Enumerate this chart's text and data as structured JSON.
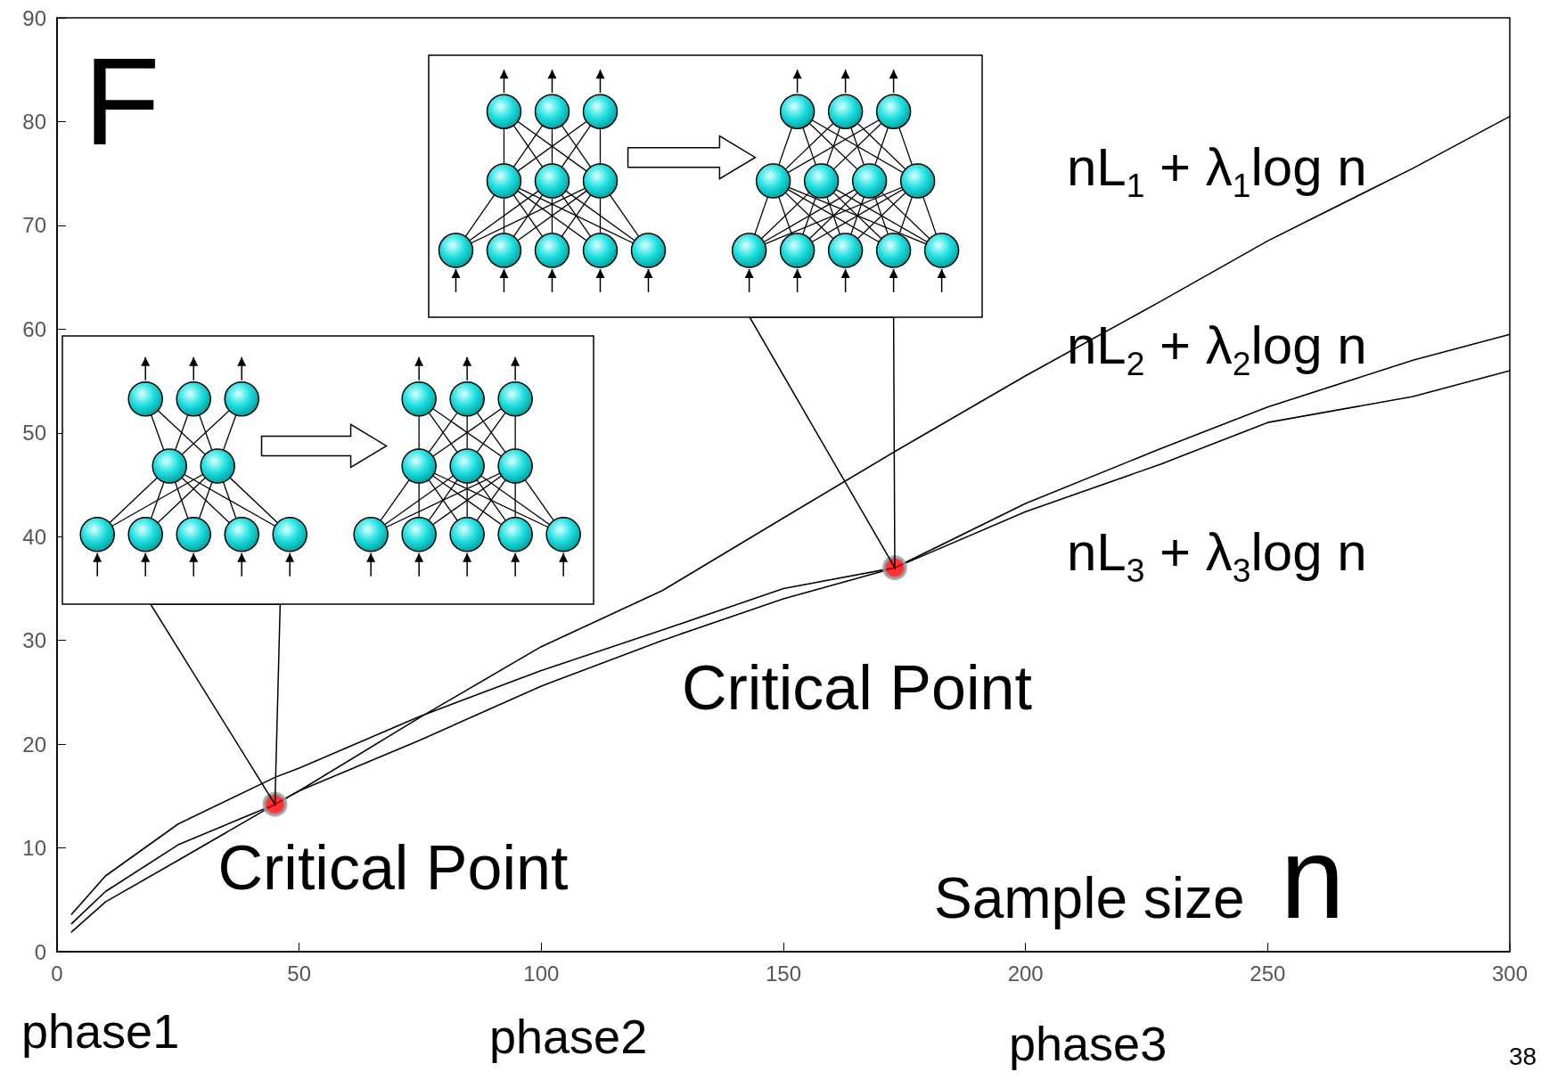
{
  "chart_data": {
    "type": "line",
    "title": "F",
    "xlabel": "Sample size n",
    "x": [
      3,
      10,
      25,
      45,
      50,
      75,
      100,
      125,
      150,
      173,
      200,
      228,
      250,
      280,
      300
    ],
    "series": [
      {
        "name": "nL$_{1}$ + λ$_{1}$log n",
        "color": "#000000",
        "values": [
          1.9,
          4.8,
          8.8,
          14.2,
          15.5,
          22.6,
          29.4,
          34.8,
          41.8,
          48.2,
          55.5,
          62.7,
          68.5,
          75.5,
          80.5
        ]
      },
      {
        "name": "nL$_{2}$ + λ$_{2}$log n",
        "color": "#000000",
        "values": [
          2.7,
          5.8,
          10.3,
          14.2,
          15.5,
          20.4,
          25.6,
          30,
          34,
          37,
          43.2,
          48.5,
          52.5,
          57,
          59.5
        ]
      },
      {
        "name": "nL$_{3}$ + λ$_{3}$log n",
        "color": "#000000",
        "values": [
          3.6,
          7.3,
          12.3,
          16.8,
          17.7,
          22.7,
          27.1,
          31,
          35,
          37,
          42.4,
          47,
          51,
          53.5,
          56
        ]
      },
      {
        "type": "scatter",
        "marker": "circle",
        "color": "#ff0000",
        "x": [
          45,
          173
        ],
        "values": [
          14.2,
          37
        ]
      }
    ],
    "annotations": [
      {
        "text": "Critical Point",
        "x": 45,
        "y": 14.2
      },
      {
        "text": "Critical Point",
        "x": 173,
        "y": 37
      },
      "phase1",
      "phase2",
      "phase3",
      "38"
    ],
    "xlim": [
      0,
      300
    ],
    "xticks": [
      0,
      50,
      100,
      150,
      200,
      250,
      300
    ],
    "ylim": [
      0,
      90
    ],
    "yticks": [
      0,
      10,
      20,
      30,
      40,
      50,
      60,
      70,
      80,
      90
    ],
    "grid": false,
    "marker": "none",
    "line_style": "solid"
  }
}
